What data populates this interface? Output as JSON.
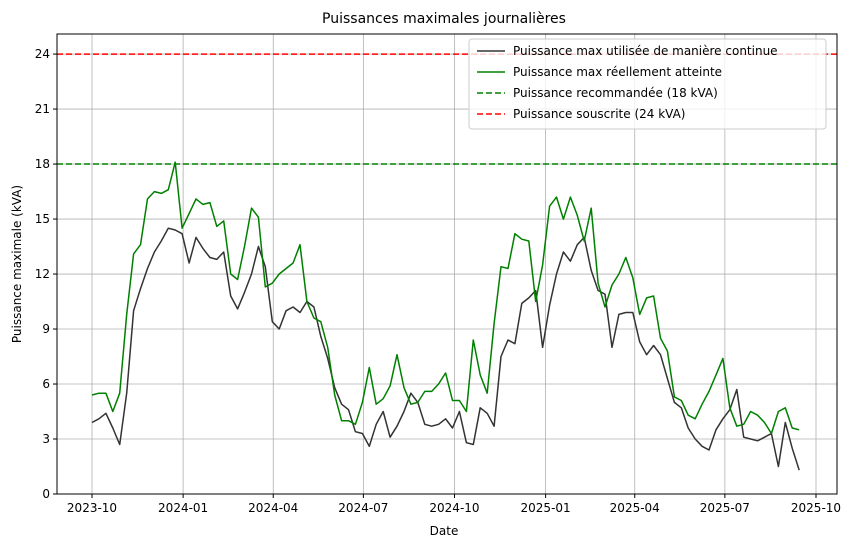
{
  "chart_data": {
    "type": "line",
    "title": "Puissances maximales journalières",
    "xlabel": "Date",
    "ylabel": "Puissance maximale (kVA)",
    "ylim": [
      0,
      25
    ],
    "yticks": [
      0,
      3,
      6,
      9,
      12,
      15,
      18,
      21,
      24
    ],
    "xticks": [
      "2023-10",
      "2024-01",
      "2024-04",
      "2024-07",
      "2024-10",
      "2025-01",
      "2025-04",
      "2025-07",
      "2025-10"
    ],
    "grid": true,
    "legend_position": "upper right",
    "x": [
      "2023-10-01",
      "2023-10-08",
      "2023-10-15",
      "2023-10-22",
      "2023-10-29",
      "2023-11-05",
      "2023-11-12",
      "2023-11-19",
      "2023-11-26",
      "2023-12-03",
      "2023-12-10",
      "2023-12-17",
      "2023-12-24",
      "2023-12-31",
      "2024-01-07",
      "2024-01-14",
      "2024-01-21",
      "2024-01-28",
      "2024-02-04",
      "2024-02-11",
      "2024-02-18",
      "2024-02-25",
      "2024-03-03",
      "2024-03-10",
      "2024-03-17",
      "2024-03-24",
      "2024-03-31",
      "2024-04-07",
      "2024-04-14",
      "2024-04-21",
      "2024-04-28",
      "2024-05-05",
      "2024-05-12",
      "2024-05-19",
      "2024-05-26",
      "2024-06-02",
      "2024-06-09",
      "2024-06-16",
      "2024-06-23",
      "2024-06-30",
      "2024-07-07",
      "2024-07-14",
      "2024-07-21",
      "2024-07-28",
      "2024-08-04",
      "2024-08-11",
      "2024-08-18",
      "2024-08-25",
      "2024-09-01",
      "2024-09-08",
      "2024-09-15",
      "2024-09-22",
      "2024-09-29",
      "2024-10-06",
      "2024-10-13",
      "2024-10-20",
      "2024-10-27",
      "2024-11-03",
      "2024-11-10",
      "2024-11-17",
      "2024-11-24",
      "2024-12-01",
      "2024-12-08",
      "2024-12-15",
      "2024-12-22",
      "2024-12-29",
      "2025-01-05",
      "2025-01-12",
      "2025-01-19",
      "2025-01-26",
      "2025-02-02",
      "2025-02-09",
      "2025-02-16",
      "2025-02-23",
      "2025-03-02",
      "2025-03-09",
      "2025-03-16",
      "2025-03-23",
      "2025-03-30",
      "2025-04-06",
      "2025-04-13",
      "2025-04-20",
      "2025-04-27",
      "2025-05-04",
      "2025-05-11",
      "2025-05-18",
      "2025-05-25",
      "2025-06-01",
      "2025-06-08",
      "2025-06-15",
      "2025-06-22",
      "2025-06-29",
      "2025-07-06",
      "2025-07-13",
      "2025-07-20",
      "2025-07-27",
      "2025-08-03",
      "2025-08-10",
      "2025-08-17",
      "2025-08-24",
      "2025-08-31",
      "2025-09-07",
      "2025-09-14"
    ],
    "series": [
      {
        "name": "Puissance max utilisée de manière continue",
        "color": "#333333",
        "style": "solid",
        "values": [
          3.9,
          4.1,
          4.4,
          3.6,
          2.7,
          5.5,
          10.0,
          11.2,
          12.3,
          13.2,
          13.8,
          14.5,
          14.4,
          14.2,
          12.6,
          14.0,
          13.4,
          12.9,
          12.8,
          13.2,
          10.8,
          10.1,
          11.0,
          12.0,
          13.5,
          12.4,
          9.4,
          9.0,
          10.0,
          10.2,
          9.9,
          10.5,
          10.2,
          8.6,
          7.4,
          5.8,
          4.9,
          4.6,
          3.4,
          3.3,
          2.6,
          3.8,
          4.5,
          3.1,
          3.7,
          4.5,
          5.5,
          5.0,
          3.8,
          3.7,
          3.8,
          4.1,
          3.6,
          4.5,
          2.8,
          2.7,
          4.7,
          4.4,
          3.7,
          7.5,
          8.4,
          8.2,
          10.4,
          10.7,
          11.1,
          8.0,
          10.3,
          12.0,
          13.2,
          12.7,
          13.6,
          14.0,
          12.2,
          11.1,
          10.9,
          8.0,
          9.8,
          9.9,
          9.9,
          8.3,
          7.6,
          8.1,
          7.6,
          6.3,
          5.0,
          4.7,
          3.6,
          3.0,
          2.6,
          2.4,
          3.5,
          4.1,
          4.6,
          5.7,
          3.1,
          3.0,
          2.9,
          3.1,
          3.3,
          1.5,
          3.9,
          2.5,
          1.3
        ]
      },
      {
        "name": "Puissance max réellement atteinte",
        "color": "#008000",
        "style": "solid",
        "values": [
          5.4,
          5.5,
          5.5,
          4.5,
          5.5,
          9.8,
          13.1,
          13.6,
          16.1,
          16.5,
          16.4,
          16.6,
          18.1,
          14.5,
          15.3,
          16.1,
          15.8,
          15.9,
          14.6,
          14.9,
          12.0,
          11.7,
          13.5,
          15.6,
          15.1,
          11.3,
          11.5,
          12.0,
          12.3,
          12.6,
          13.6,
          10.5,
          9.6,
          9.4,
          8.0,
          5.4,
          4.0,
          4.0,
          3.8,
          5.0,
          6.9,
          4.9,
          5.2,
          5.9,
          7.6,
          5.8,
          4.9,
          5.0,
          5.6,
          5.6,
          6.0,
          6.6,
          5.1,
          5.1,
          4.5,
          8.4,
          6.5,
          5.5,
          9.3,
          12.4,
          12.3,
          14.2,
          13.9,
          13.8,
          10.5,
          12.5,
          15.7,
          16.2,
          15.0,
          16.2,
          15.2,
          13.8,
          15.6,
          11.5,
          10.2,
          11.4,
          12.0,
          12.9,
          11.8,
          9.8,
          10.7,
          10.8,
          8.5,
          7.8,
          5.3,
          5.1,
          4.3,
          4.1,
          4.9,
          5.6,
          6.5,
          7.4,
          4.7,
          3.7,
          3.8,
          4.5,
          4.3,
          3.9,
          3.3,
          4.5,
          4.7,
          3.6,
          3.5
        ]
      },
      {
        "name": "Puissance recommandée (18 kVA)",
        "color": "#008000",
        "style": "dashed",
        "constant": 18
      },
      {
        "name": "Puissance souscrite (24 kVA)",
        "color": "#ff0000",
        "style": "dashed",
        "constant": 24
      }
    ]
  },
  "legend": {
    "items": [
      {
        "label": "Puissance max utilisée de manière continue",
        "color": "#333333",
        "dash": false
      },
      {
        "label": "Puissance max réellement atteinte",
        "color": "#008000",
        "dash": false
      },
      {
        "label": "Puissance recommandée (18 kVA)",
        "color": "#008000",
        "dash": true
      },
      {
        "label": "Puissance souscrite (24 kVA)",
        "color": "#ff0000",
        "dash": true
      }
    ]
  }
}
